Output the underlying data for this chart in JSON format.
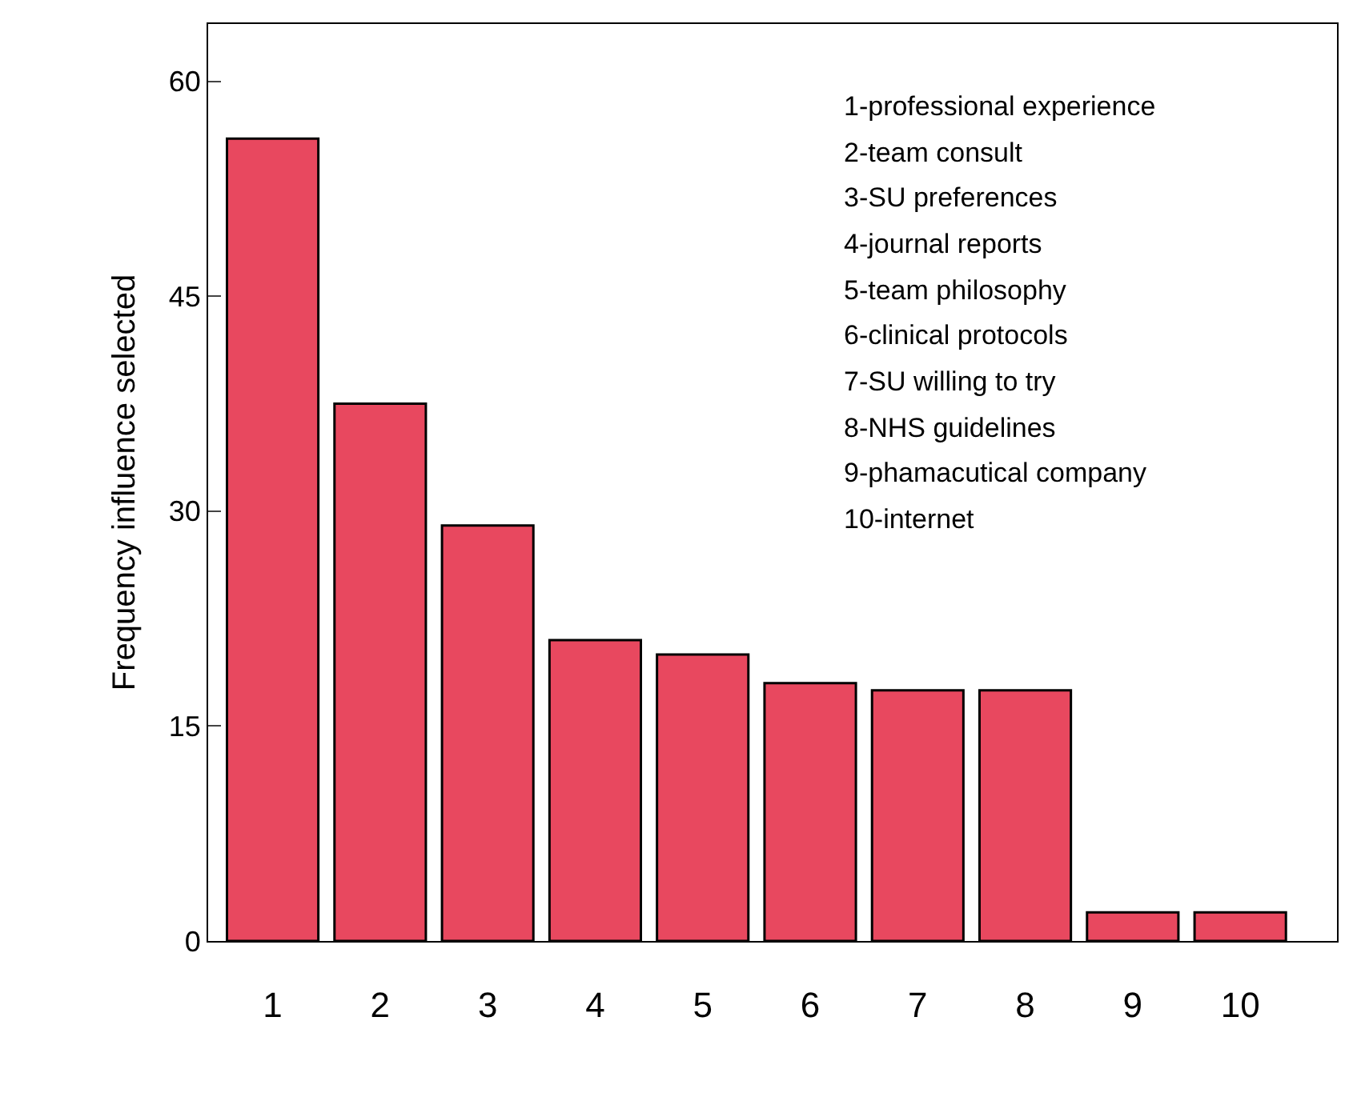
{
  "chart_data": {
    "type": "bar",
    "ylabel": "Frequency influence selected",
    "categories": [
      "1",
      "2",
      "3",
      "4",
      "5",
      "6",
      "7",
      "8",
      "9",
      "10"
    ],
    "values": [
      56,
      37.5,
      29,
      21,
      20,
      18,
      17.5,
      17.5,
      2,
      2
    ],
    "color": "#e8485f",
    "ylim": [
      0,
      64
    ],
    "yticks": [
      0,
      15,
      30,
      45,
      60
    ],
    "legend": false,
    "annotations": [
      "1-professional experience",
      "2-team consult",
      "3-SU preferences",
      "4-journal reports",
      "5-team philosophy",
      "6-clinical protocols",
      "7-SU willing to try",
      "8-NHS guidelines",
      "9-phamacutical company",
      "10-internet"
    ]
  }
}
